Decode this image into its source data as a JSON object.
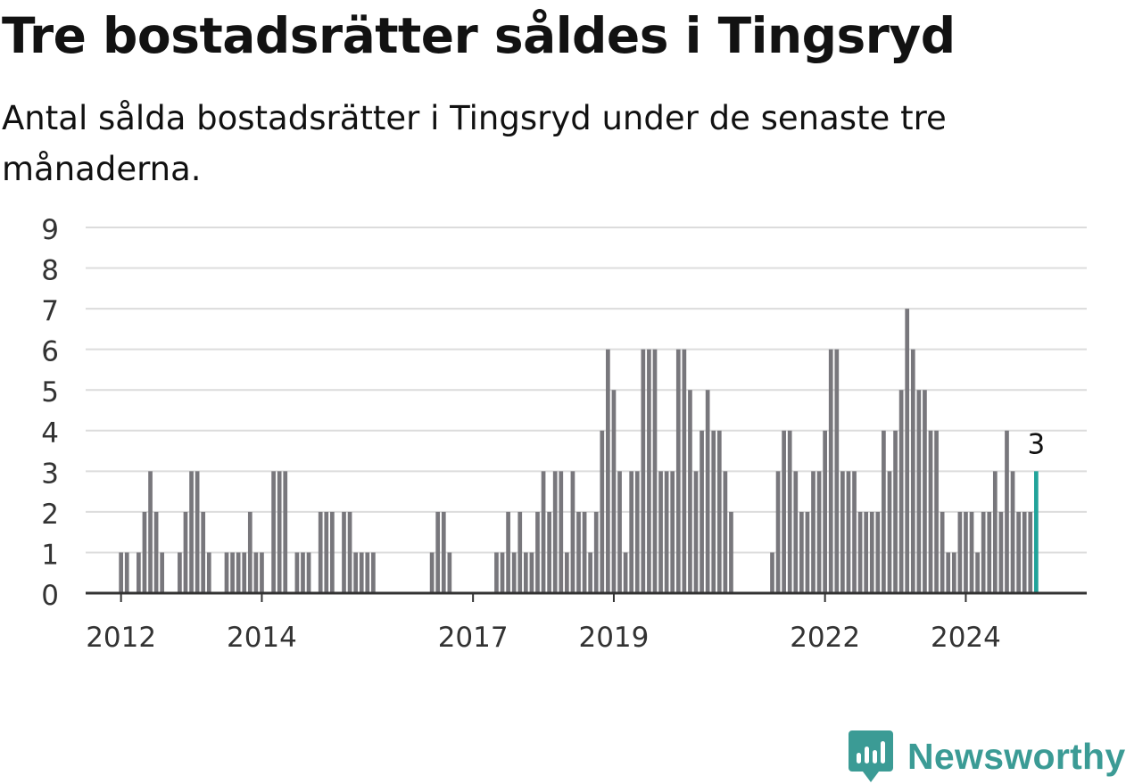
{
  "header": {
    "title": "Tre bostadsrätter såldes i Tingsryd",
    "subtitle": "Antal sålda bostadsrätter i Tingsryd under de senaste tre månaderna."
  },
  "brand": {
    "name": "Newsworthy",
    "icon": "newsworthy-logo-icon",
    "color": "#3b9b95"
  },
  "chart_data": {
    "type": "bar",
    "x_start": "2011-09",
    "x_end": "2025-01",
    "step": "month",
    "ylim": [
      0,
      9
    ],
    "yticks": [
      "0",
      "1",
      "2",
      "3",
      "4",
      "5",
      "6",
      "7",
      "8",
      "9"
    ],
    "xticks": [
      {
        "label": "2012",
        "month": "2012-01"
      },
      {
        "label": "2014",
        "month": "2014-01"
      },
      {
        "label": "2017",
        "month": "2017-01"
      },
      {
        "label": "2019",
        "month": "2019-01"
      },
      {
        "label": "2022",
        "month": "2022-01"
      },
      {
        "label": "2024",
        "month": "2024-01"
      }
    ],
    "grid": true,
    "bar_color": "#78777c",
    "highlight_color": "#21a39a",
    "highlight_label": "3",
    "values": [
      0,
      0,
      0,
      0,
      1,
      1,
      0,
      1,
      2,
      3,
      2,
      1,
      0,
      0,
      1,
      2,
      3,
      3,
      2,
      1,
      0,
      0,
      1,
      1,
      1,
      1,
      2,
      1,
      1,
      0,
      3,
      3,
      3,
      0,
      1,
      1,
      1,
      0,
      2,
      2,
      2,
      0,
      2,
      2,
      1,
      1,
      1,
      1,
      0,
      0,
      0,
      0,
      0,
      0,
      0,
      0,
      0,
      1,
      2,
      2,
      1,
      0,
      0,
      0,
      0,
      0,
      0,
      0,
      1,
      1,
      2,
      1,
      2,
      1,
      1,
      2,
      3,
      2,
      3,
      3,
      1,
      3,
      2,
      2,
      1,
      2,
      4,
      6,
      5,
      3,
      1,
      3,
      3,
      6,
      6,
      6,
      3,
      3,
      3,
      6,
      6,
      5,
      3,
      4,
      5,
      4,
      4,
      3,
      2,
      0,
      0,
      0,
      0,
      0,
      0,
      1,
      3,
      4,
      4,
      3,
      2,
      2,
      3,
      3,
      4,
      6,
      6,
      3,
      3,
      3,
      2,
      2,
      2,
      2,
      4,
      3,
      4,
      5,
      7,
      6,
      5,
      5,
      4,
      4,
      2,
      1,
      1,
      2,
      2,
      2,
      1,
      2,
      2,
      3,
      2,
      4,
      3,
      2,
      2,
      2,
      3
    ]
  }
}
